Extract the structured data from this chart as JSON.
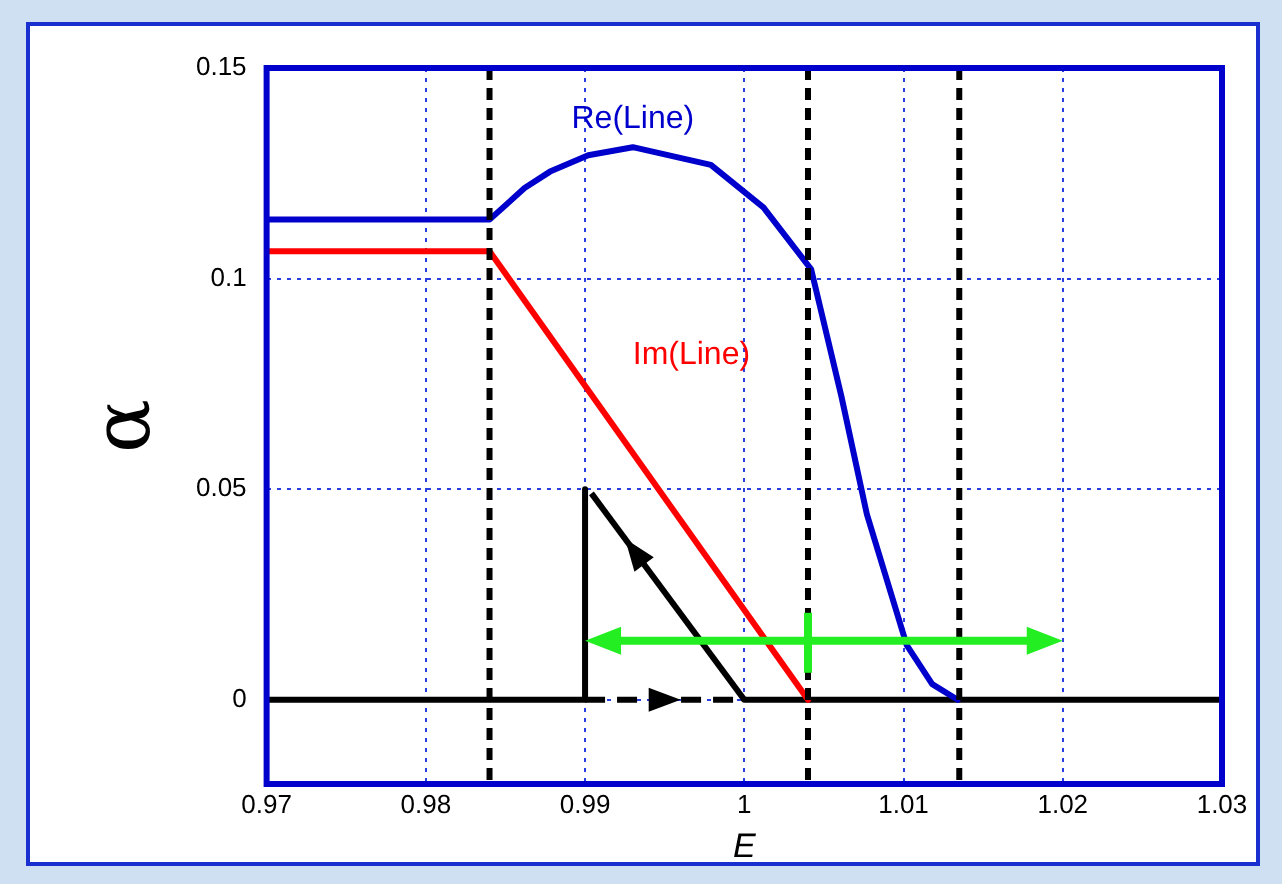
{
  "chart_data": {
    "type": "line",
    "xlabel": "E",
    "ylabel": "α",
    "xlim": [
      0.97,
      1.03
    ],
    "xticks": [
      0.97,
      0.98,
      0.99,
      1,
      1.01,
      1.02,
      1.03
    ],
    "ylim": [
      -0.02,
      0.15
    ],
    "yticks": [
      0,
      0.05,
      0.1,
      0.15
    ],
    "grid": true,
    "legend": false,
    "marker": "none",
    "line_style": "solid",
    "series": [
      {
        "name": "Re(Line)",
        "color": "#0000cc",
        "x": [
          0.97,
          0.984,
          0.9862,
          0.9878,
          0.9902,
          0.993,
          0.9979,
          1.0012,
          1.0042,
          1.0061,
          1.0077,
          1.0102,
          1.0118,
          1.0134
        ],
        "values": [
          0.114,
          0.114,
          0.1215,
          0.1254,
          0.1293,
          0.1312,
          0.127,
          0.1169,
          0.1022,
          0.072,
          0.044,
          0.013,
          0.0037,
          0
        ]
      },
      {
        "name": "Im(Line)",
        "color": "#ff0000",
        "x": [
          0.97,
          0.984,
          1.004
        ],
        "values": [
          0.1065,
          0.1065,
          0
        ]
      },
      {
        "color": "#000000",
        "x": [
          0.97,
          0.99,
          0.99
        ],
        "values": [
          0,
          0,
          0.05
        ]
      },
      {
        "color": "#000000",
        "x": [
          1,
          1.03
        ],
        "values": [
          0,
          0
        ]
      }
    ],
    "ref_lines": [
      {
        "axis": "x",
        "value": 0.984,
        "color": "#000000",
        "line_style": "dashed"
      },
      {
        "axis": "x",
        "value": 1.004,
        "color": "#000000",
        "line_style": "dashed"
      },
      {
        "axis": "x",
        "value": 1.0135,
        "color": "#000000",
        "line_style": "dashed"
      }
    ]
  }
}
